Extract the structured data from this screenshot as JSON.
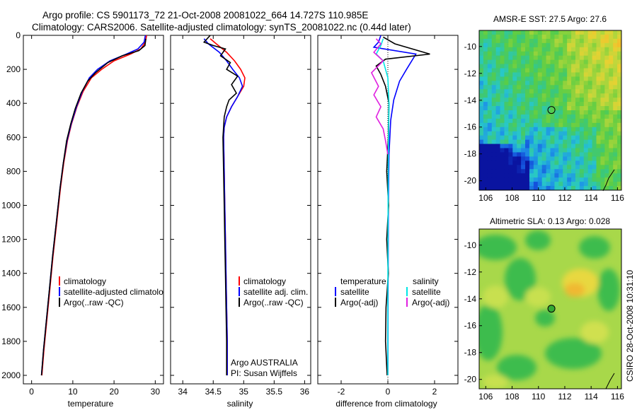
{
  "header": {
    "line1": "Argo profile: CS 5901173_72 21-Oct-2008 20081022_664 14.727S 110.985E",
    "line2": "Climatology: CARS2006. Satellite-adjusted climatology: synTS_20081022.nc (0.44d later)"
  },
  "side_label": "CSIRO 28-Oct-2008 10:31:10",
  "colors": {
    "clim": "#ff0000",
    "sat": "#0000ff",
    "argo": "#000000",
    "sal_sat": "#00e5e5",
    "sal_argo": "#e020e0"
  },
  "chart_data": [
    {
      "type": "line",
      "id": "temperature",
      "xlabel": "temperature",
      "xlim": [
        -2,
        32
      ],
      "ylim": [
        2050,
        0
      ],
      "xticks": [
        "0",
        "10",
        "20",
        "30"
      ],
      "xtick_values": [
        0,
        10,
        20,
        30
      ],
      "yticks": [
        "0",
        "200",
        "400",
        "600",
        "800",
        "1000",
        "1200",
        "1400",
        "1600",
        "1800",
        "2000"
      ],
      "ytick_values": [
        0,
        200,
        400,
        600,
        800,
        1000,
        1200,
        1400,
        1600,
        1800,
        2000
      ],
      "legend": [
        "climatology",
        "satellite-adjusted climatology",
        "Argo(..raw -QC)"
      ],
      "series": [
        {
          "name": "climatology",
          "color": "#ff0000",
          "points": [
            [
              27.9,
              0
            ],
            [
              27.6,
              40
            ],
            [
              26.5,
              80
            ],
            [
              24,
              110
            ],
            [
              20,
              150
            ],
            [
              17,
              200
            ],
            [
              14.5,
              250
            ],
            [
              12.5,
              330
            ],
            [
              11,
              420
            ],
            [
              9.7,
              520
            ],
            [
              8.7,
              620
            ],
            [
              7.8,
              750
            ],
            [
              7,
              900
            ],
            [
              6.1,
              1100
            ],
            [
              5.2,
              1300
            ],
            [
              4.4,
              1500
            ],
            [
              3.6,
              1700
            ],
            [
              3,
              1850
            ],
            [
              2.5,
              2000
            ]
          ]
        },
        {
          "name": "satellite-adjusted climatology",
          "color": "#0000ff",
          "points": [
            [
              27.6,
              0
            ],
            [
              27.3,
              40
            ],
            [
              25.8,
              80
            ],
            [
              23,
              110
            ],
            [
              19,
              150
            ],
            [
              16,
              200
            ],
            [
              14,
              250
            ],
            [
              12.3,
              330
            ],
            [
              10.9,
              420
            ],
            [
              9.6,
              520
            ],
            [
              8.6,
              620
            ],
            [
              7.7,
              750
            ],
            [
              6.9,
              900
            ],
            [
              6,
              1100
            ],
            [
              5.1,
              1300
            ],
            [
              4.3,
              1500
            ],
            [
              3.5,
              1700
            ],
            [
              2.9,
              1850
            ],
            [
              2.4,
              2000
            ]
          ]
        },
        {
          "name": "Argo(..raw -QC)",
          "color": "#000000",
          "points": [
            [
              27.7,
              20
            ],
            [
              27.5,
              60
            ],
            [
              26,
              90
            ],
            [
              22,
              120
            ],
            [
              18.5,
              160
            ],
            [
              15.5,
              220
            ],
            [
              13.6,
              270
            ],
            [
              12,
              340
            ],
            [
              10.6,
              430
            ],
            [
              9.5,
              520
            ],
            [
              8.5,
              620
            ],
            [
              7.7,
              750
            ],
            [
              6.9,
              900
            ],
            [
              6,
              1100
            ],
            [
              5.1,
              1300
            ],
            [
              4.3,
              1500
            ],
            [
              3.5,
              1700
            ],
            [
              2.9,
              1850
            ],
            [
              2.4,
              2000
            ]
          ]
        }
      ]
    },
    {
      "type": "line",
      "id": "salinity",
      "xlabel": "salinity",
      "xlim": [
        33.8,
        36.1
      ],
      "ylim": [
        2050,
        0
      ],
      "xticks": [
        "34",
        "34.5",
        "35",
        "35.5",
        "36"
      ],
      "xtick_values": [
        34,
        34.5,
        35,
        35.5,
        36
      ],
      "legend": [
        "climatology",
        "satellite adj. clim.",
        "Argo(..raw -QC)"
      ],
      "annotation": [
        "Argo AUSTRALIA",
        "PI: Susan Wijffels"
      ],
      "series": [
        {
          "name": "climatology",
          "color": "#ff0000",
          "points": [
            [
              34.45,
              20
            ],
            [
              34.55,
              50
            ],
            [
              34.72,
              100
            ],
            [
              34.85,
              150
            ],
            [
              34.95,
              200
            ],
            [
              35.02,
              250
            ],
            [
              35.0,
              300
            ],
            [
              34.9,
              360
            ],
            [
              34.8,
              420
            ],
            [
              34.72,
              480
            ],
            [
              34.68,
              540
            ],
            [
              34.67,
              600
            ],
            [
              34.68,
              800
            ],
            [
              34.69,
              1000
            ],
            [
              34.7,
              1200
            ],
            [
              34.71,
              1400
            ],
            [
              34.72,
              1600
            ],
            [
              34.73,
              1800
            ],
            [
              34.73,
              2000
            ]
          ]
        },
        {
          "name": "satellite adj. clim.",
          "color": "#0000ff",
          "points": [
            [
              34.35,
              20
            ],
            [
              34.42,
              50
            ],
            [
              34.6,
              100
            ],
            [
              34.72,
              150
            ],
            [
              34.82,
              200
            ],
            [
              34.93,
              250
            ],
            [
              34.98,
              300
            ],
            [
              34.9,
              360
            ],
            [
              34.8,
              420
            ],
            [
              34.72,
              480
            ],
            [
              34.68,
              540
            ],
            [
              34.67,
              600
            ],
            [
              34.68,
              800
            ],
            [
              34.69,
              1000
            ],
            [
              34.7,
              1200
            ],
            [
              34.71,
              1400
            ],
            [
              34.72,
              1600
            ],
            [
              34.73,
              1800
            ],
            [
              34.73,
              2000
            ]
          ]
        },
        {
          "name": "Argo(..raw -QC)",
          "color": "#000000",
          "points": [
            [
              34.45,
              0
            ],
            [
              34.35,
              40
            ],
            [
              34.5,
              60
            ],
            [
              34.7,
              80
            ],
            [
              34.62,
              120
            ],
            [
              34.78,
              160
            ],
            [
              34.72,
              200
            ],
            [
              34.9,
              240
            ],
            [
              34.8,
              290
            ],
            [
              34.88,
              340
            ],
            [
              34.76,
              380
            ],
            [
              34.72,
              420
            ],
            [
              34.68,
              480
            ],
            [
              34.67,
              540
            ],
            [
              34.66,
              600
            ],
            [
              34.67,
              800
            ],
            [
              34.68,
              1000
            ],
            [
              34.69,
              1200
            ],
            [
              34.7,
              1400
            ],
            [
              34.71,
              1600
            ],
            [
              34.72,
              1800
            ],
            [
              34.72,
              2000
            ]
          ]
        }
      ]
    },
    {
      "type": "line",
      "id": "difference",
      "xlabel": "difference from climatology",
      "xlim": [
        -3,
        3
      ],
      "ylim": [
        2050,
        0
      ],
      "xticks": [
        "-2",
        "0",
        "2"
      ],
      "xtick_values": [
        -2,
        0,
        2
      ],
      "legend_left_title": "temperature",
      "legend_right_title": "salinity",
      "legend_left": [
        "satellite",
        "Argo(-adj)"
      ],
      "legend_right": [
        "satellite",
        "Argo(-adj)"
      ],
      "series": [
        {
          "name": "temperature satellite",
          "color": "#0000ff",
          "points": [
            [
              -0.3,
              0
            ],
            [
              -0.4,
              40
            ],
            [
              -0.6,
              70
            ],
            [
              1.2,
              110
            ],
            [
              0.8,
              200
            ],
            [
              0.5,
              270
            ],
            [
              0.25,
              380
            ],
            [
              0.12,
              500
            ],
            [
              0.05,
              700
            ],
            [
              0.02,
              1000
            ],
            [
              0.01,
              1500
            ],
            [
              0,
              2000
            ]
          ]
        },
        {
          "name": "temperature Argo(-adj)",
          "color": "#000000",
          "points": [
            [
              -0.2,
              10
            ],
            [
              0.3,
              50
            ],
            [
              1.8,
              110
            ],
            [
              -0.1,
              140
            ],
            [
              -0.5,
              180
            ],
            [
              -0.3,
              230
            ],
            [
              -0.1,
              300
            ],
            [
              0.05,
              400
            ],
            [
              0.02,
              600
            ],
            [
              -0.05,
              800
            ],
            [
              0.03,
              1000
            ],
            [
              -0.05,
              1200
            ],
            [
              0.02,
              1400
            ],
            [
              -0.08,
              1600
            ],
            [
              -0.1,
              1800
            ],
            [
              -0.03,
              2000
            ]
          ]
        },
        {
          "name": "salinity satellite",
          "color": "#00e5e5",
          "points": [
            [
              -0.2,
              20
            ],
            [
              -0.3,
              60
            ],
            [
              -0.5,
              110
            ],
            [
              -0.2,
              150
            ],
            [
              0,
              250
            ],
            [
              0.05,
              400
            ],
            [
              0.02,
              700
            ],
            [
              0.01,
              1000
            ],
            [
              0,
              1500
            ],
            [
              0,
              2000
            ]
          ]
        },
        {
          "name": "salinity Argo(-adj)",
          "color": "#e020e0",
          "points": [
            [
              -0.5,
              20
            ],
            [
              -0.3,
              50
            ],
            [
              -0.6,
              100
            ],
            [
              -0.2,
              150
            ],
            [
              -0.7,
              220
            ],
            [
              -0.4,
              300
            ],
            [
              -0.6,
              350
            ],
            [
              -0.3,
              420
            ],
            [
              -0.5,
              480
            ],
            [
              -0.2,
              550
            ],
            [
              -0.1,
              620
            ],
            [
              0,
              700
            ]
          ]
        }
      ]
    },
    {
      "type": "heatmap",
      "id": "amsre-sst",
      "title": "AMSR-E SST: 27.5 Argo: 27.6",
      "xlim": [
        105.5,
        116.3
      ],
      "ylim": [
        -20.7,
        -8.8
      ],
      "xticks": [
        "106",
        "108",
        "110",
        "112",
        "114",
        "116"
      ],
      "xtick_values": [
        106,
        108,
        110,
        112,
        114,
        116
      ],
      "yticks": [
        "-10",
        "-12",
        "-14",
        "-16",
        "-18",
        "-20"
      ],
      "ytick_values": [
        -10,
        -12,
        -14,
        -16,
        -18,
        -20
      ],
      "marker": {
        "lon": 110.985,
        "lat": -14.727,
        "color": "none"
      }
    },
    {
      "type": "heatmap",
      "id": "altimetric-sla",
      "title": "Altimetric SLA: 0.13 Argo: 0.028",
      "xlim": [
        105.5,
        116.3
      ],
      "ylim": [
        -20.7,
        -8.8
      ],
      "xticks": [
        "106",
        "108",
        "110",
        "112",
        "114",
        "116"
      ],
      "xtick_values": [
        106,
        108,
        110,
        112,
        114,
        116
      ],
      "yticks": [
        "-10",
        "-12",
        "-14",
        "-16",
        "-18",
        "-20"
      ],
      "ytick_values": [
        -10,
        -12,
        -14,
        -16,
        -18,
        -20
      ],
      "marker": {
        "lon": 110.985,
        "lat": -14.727,
        "color": "#33aa33"
      }
    }
  ]
}
